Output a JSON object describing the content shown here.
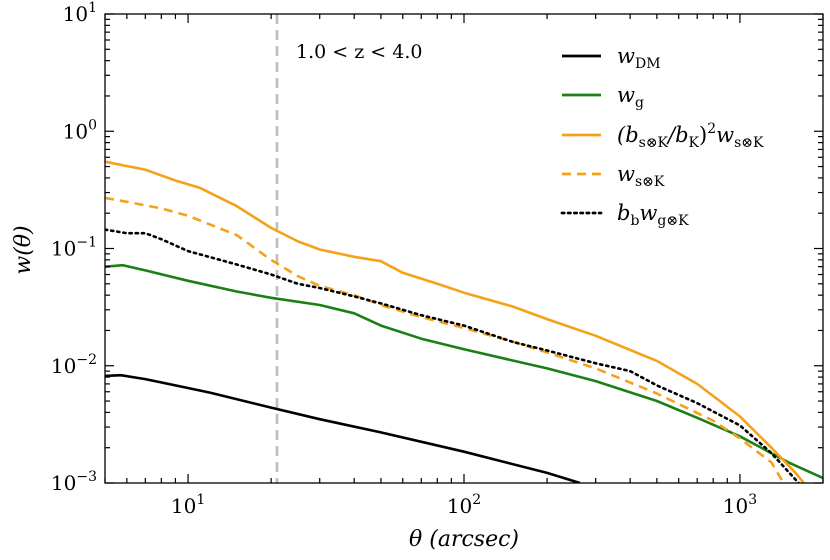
{
  "chart_data": {
    "type": "line",
    "xscale": "log",
    "yscale": "log",
    "xlim": [
      5,
      2000
    ],
    "ylim": [
      0.001,
      10
    ],
    "xlabel": "θ (arcsec)",
    "ylabel": "w(θ)",
    "x_ticks": [
      {
        "value": 10,
        "base": "10",
        "exp": "1"
      },
      {
        "value": 100,
        "base": "10",
        "exp": "2"
      },
      {
        "value": 1000,
        "base": "10",
        "exp": "3"
      }
    ],
    "y_ticks": [
      {
        "value": 0.001,
        "base": "10",
        "exp": "−3"
      },
      {
        "value": 0.01,
        "base": "10",
        "exp": "−2"
      },
      {
        "value": 0.1,
        "base": "10",
        "exp": "−1"
      },
      {
        "value": 1,
        "base": "10",
        "exp": "0"
      },
      {
        "value": 10,
        "base": "10",
        "exp": "1"
      }
    ],
    "annotation": "1.0 < z < 4.0",
    "vline": {
      "x": 21,
      "color": "#bdbdbd",
      "dash": "dashed"
    },
    "legend_position": "top-right",
    "colors": {
      "black": "#000000",
      "green": "#1a8016",
      "orange": "#f5a21b"
    },
    "series": [
      {
        "name": "w_DM",
        "legend": {
          "base": "w",
          "sub": "DM",
          "prefix": "",
          "mid": "",
          "base2": "",
          "sub2": ""
        },
        "color": "#000000",
        "dash": "solid",
        "x": [
          5,
          5.7,
          7,
          9,
          12,
          20,
          30,
          50,
          100,
          200,
          263
        ],
        "y": [
          0.0082,
          0.0083,
          0.0077,
          0.0068,
          0.0059,
          0.0044,
          0.0035,
          0.0027,
          0.00185,
          0.00122,
          0.001
        ]
      },
      {
        "name": "w_g",
        "legend": {
          "base": "w",
          "sub": "g",
          "prefix": "",
          "mid": "",
          "base2": "",
          "sub2": ""
        },
        "color": "#1a8016",
        "dash": "solid",
        "x": [
          5,
          5.8,
          7,
          10,
          15,
          20,
          30,
          40,
          50,
          70,
          100,
          200,
          300,
          500,
          700,
          1000,
          1500,
          2000
        ],
        "y": [
          0.07,
          0.072,
          0.065,
          0.053,
          0.043,
          0.038,
          0.033,
          0.028,
          0.022,
          0.017,
          0.0138,
          0.0095,
          0.0074,
          0.005,
          0.0036,
          0.0025,
          0.0015,
          0.0011
        ]
      },
      {
        "name": "(b_s⊗K/b_K)^2 w_s⊗K",
        "legend": {
          "base": "",
          "sub": "",
          "prefix": "(b",
          "sub_a": "s⊗K",
          "mid": "/b",
          "sub_b": "K",
          "sup": "2",
          "base2": "w",
          "sub2": "s⊗K"
        },
        "color": "#f5a21b",
        "dash": "solid",
        "x": [
          5,
          7,
          9,
          11,
          15,
          20,
          25,
          30,
          40,
          50,
          60,
          80,
          100,
          150,
          200,
          300,
          500,
          700,
          1000,
          1300,
          1600,
          1800
        ],
        "y": [
          0.55,
          0.47,
          0.38,
          0.33,
          0.23,
          0.15,
          0.115,
          0.098,
          0.085,
          0.078,
          0.062,
          0.05,
          0.042,
          0.032,
          0.025,
          0.018,
          0.011,
          0.007,
          0.0037,
          0.002,
          0.0012,
          0.00085
        ]
      },
      {
        "name": "w_s⊗K",
        "legend": {
          "base": "w",
          "sub": "s⊗K",
          "prefix": "",
          "mid": "",
          "base2": "",
          "sub2": ""
        },
        "color": "#f5a21b",
        "dash": "dashed",
        "x": [
          5,
          6,
          8,
          10,
          15,
          20,
          25,
          30,
          40,
          50,
          70,
          100,
          150,
          200,
          300,
          500,
          800,
          1000,
          1300,
          1500
        ],
        "y": [
          0.27,
          0.25,
          0.22,
          0.19,
          0.13,
          0.08,
          0.058,
          0.048,
          0.04,
          0.033,
          0.026,
          0.021,
          0.016,
          0.013,
          0.0095,
          0.0058,
          0.0034,
          0.0024,
          0.0015,
          0.00085
        ]
      },
      {
        "name": "b_b w_g⊗K",
        "legend": {
          "base": "b",
          "sub": "b",
          "prefix": "",
          "mid": "",
          "base2": "w",
          "sub2": "g⊗K"
        },
        "color": "#000000",
        "dash": "dotted",
        "x": [
          5,
          6,
          7,
          8,
          10,
          15,
          20,
          25,
          30,
          40,
          50,
          70,
          100,
          150,
          200,
          300,
          400,
          500,
          700,
          1000,
          1300,
          1700
        ],
        "y": [
          0.145,
          0.135,
          0.135,
          0.12,
          0.095,
          0.073,
          0.06,
          0.05,
          0.046,
          0.039,
          0.034,
          0.027,
          0.022,
          0.016,
          0.0135,
          0.0105,
          0.009,
          0.0068,
          0.0048,
          0.0031,
          0.0018,
          0.0009
        ]
      }
    ]
  }
}
